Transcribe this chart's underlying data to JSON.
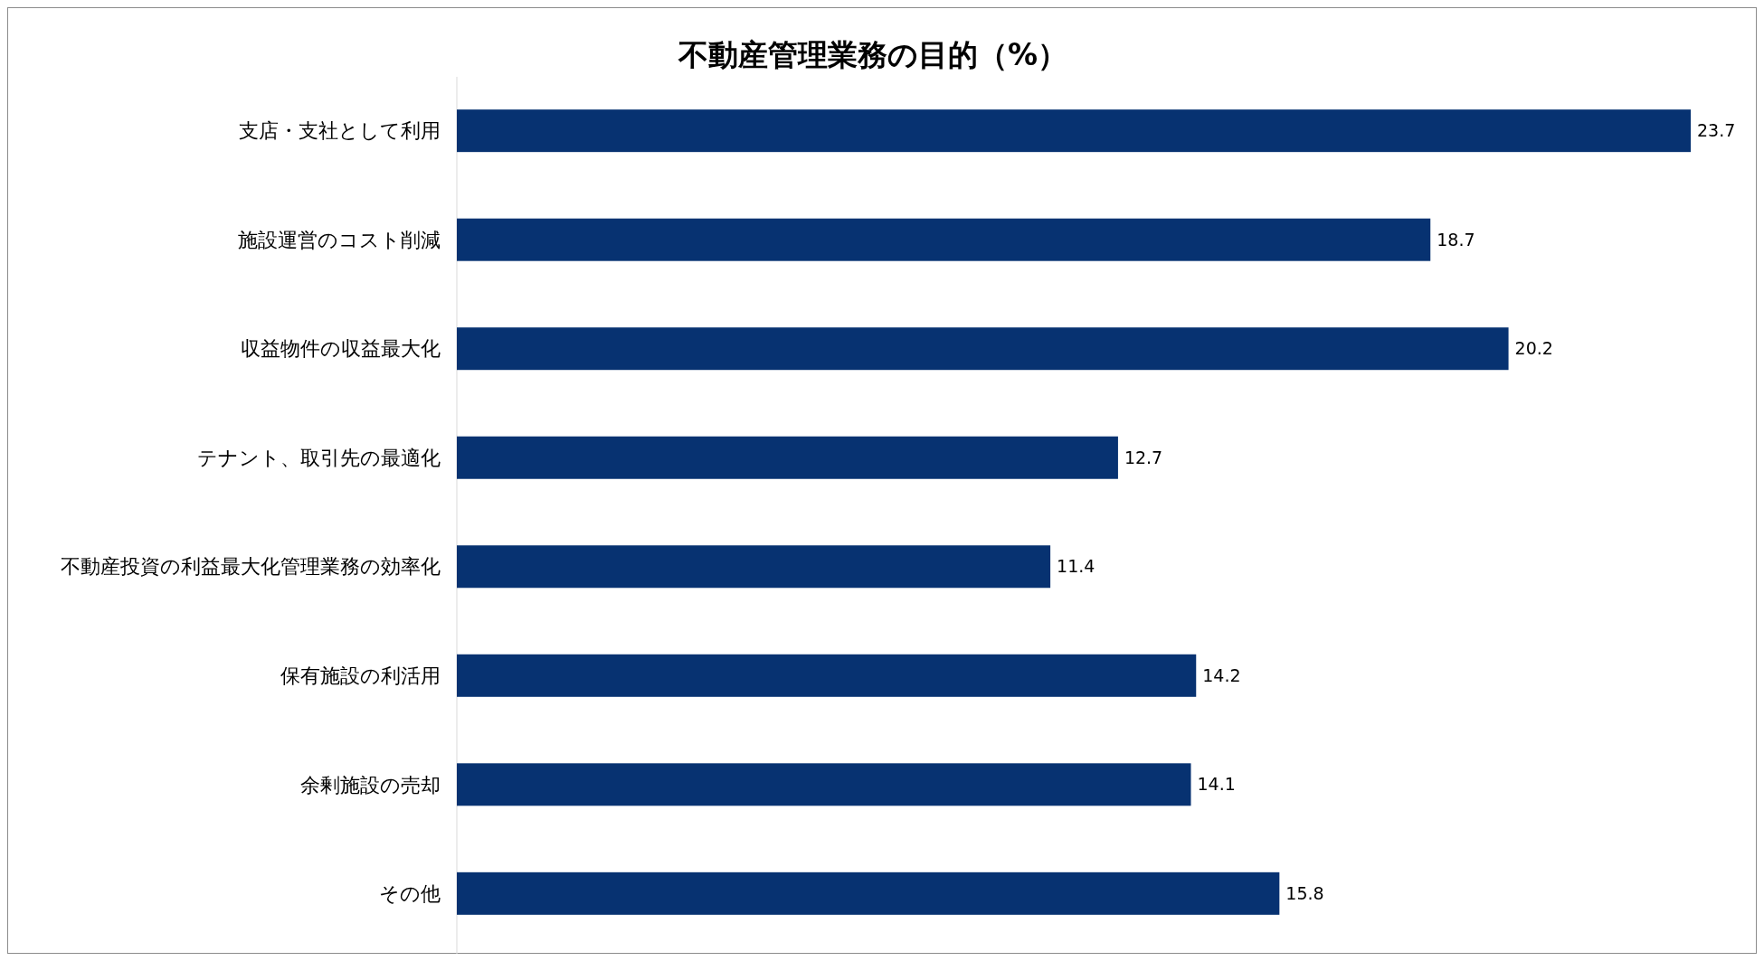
{
  "chart_data": {
    "type": "bar",
    "orientation": "horizontal",
    "title": "不動産管理業務の目的（%）",
    "categories": [
      "支店・支社として利用",
      "施設運営のコスト削減",
      "収益物件の収益最大化",
      "テナント、取引先の最適化",
      "不動産投資の利益最大化管理業務の効率化",
      "保有施設の利活用",
      "余剰施設の売却",
      "その他"
    ],
    "values": [
      23.7,
      18.7,
      20.2,
      12.7,
      11.4,
      14.2,
      14.1,
      15.8
    ],
    "color": "#073271",
    "data_labels": true
  }
}
